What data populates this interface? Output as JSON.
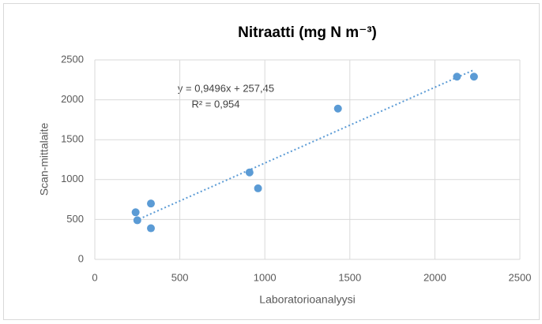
{
  "chart_data": {
    "type": "scatter",
    "title": "Nitraatti (mg N m⁻³)",
    "x_label": "Laboratorioanalyysi",
    "y_label": "Scan-mittalaite",
    "series": [
      {
        "name": "Nitraatti",
        "color": "#5b9bd5",
        "x": [
          240,
          250,
          330,
          330,
          910,
          960,
          1430,
          2130,
          2230
        ],
        "values": [
          590,
          490,
          700,
          390,
          1090,
          890,
          1890,
          2290,
          2290
        ]
      }
    ],
    "trendline": {
      "slope": 0.9496,
      "intercept": 257.45,
      "label": "y = 0,9496x + 257,45",
      "r2_label": "R² = 0,954"
    },
    "xlim": [
      0,
      2500
    ],
    "xticks": [
      0,
      500,
      1000,
      1500,
      2000,
      2500
    ],
    "ylim": [
      0,
      2500
    ],
    "yticks": [
      0,
      500,
      1000,
      1500,
      2000,
      2500
    ],
    "grid": true
  }
}
